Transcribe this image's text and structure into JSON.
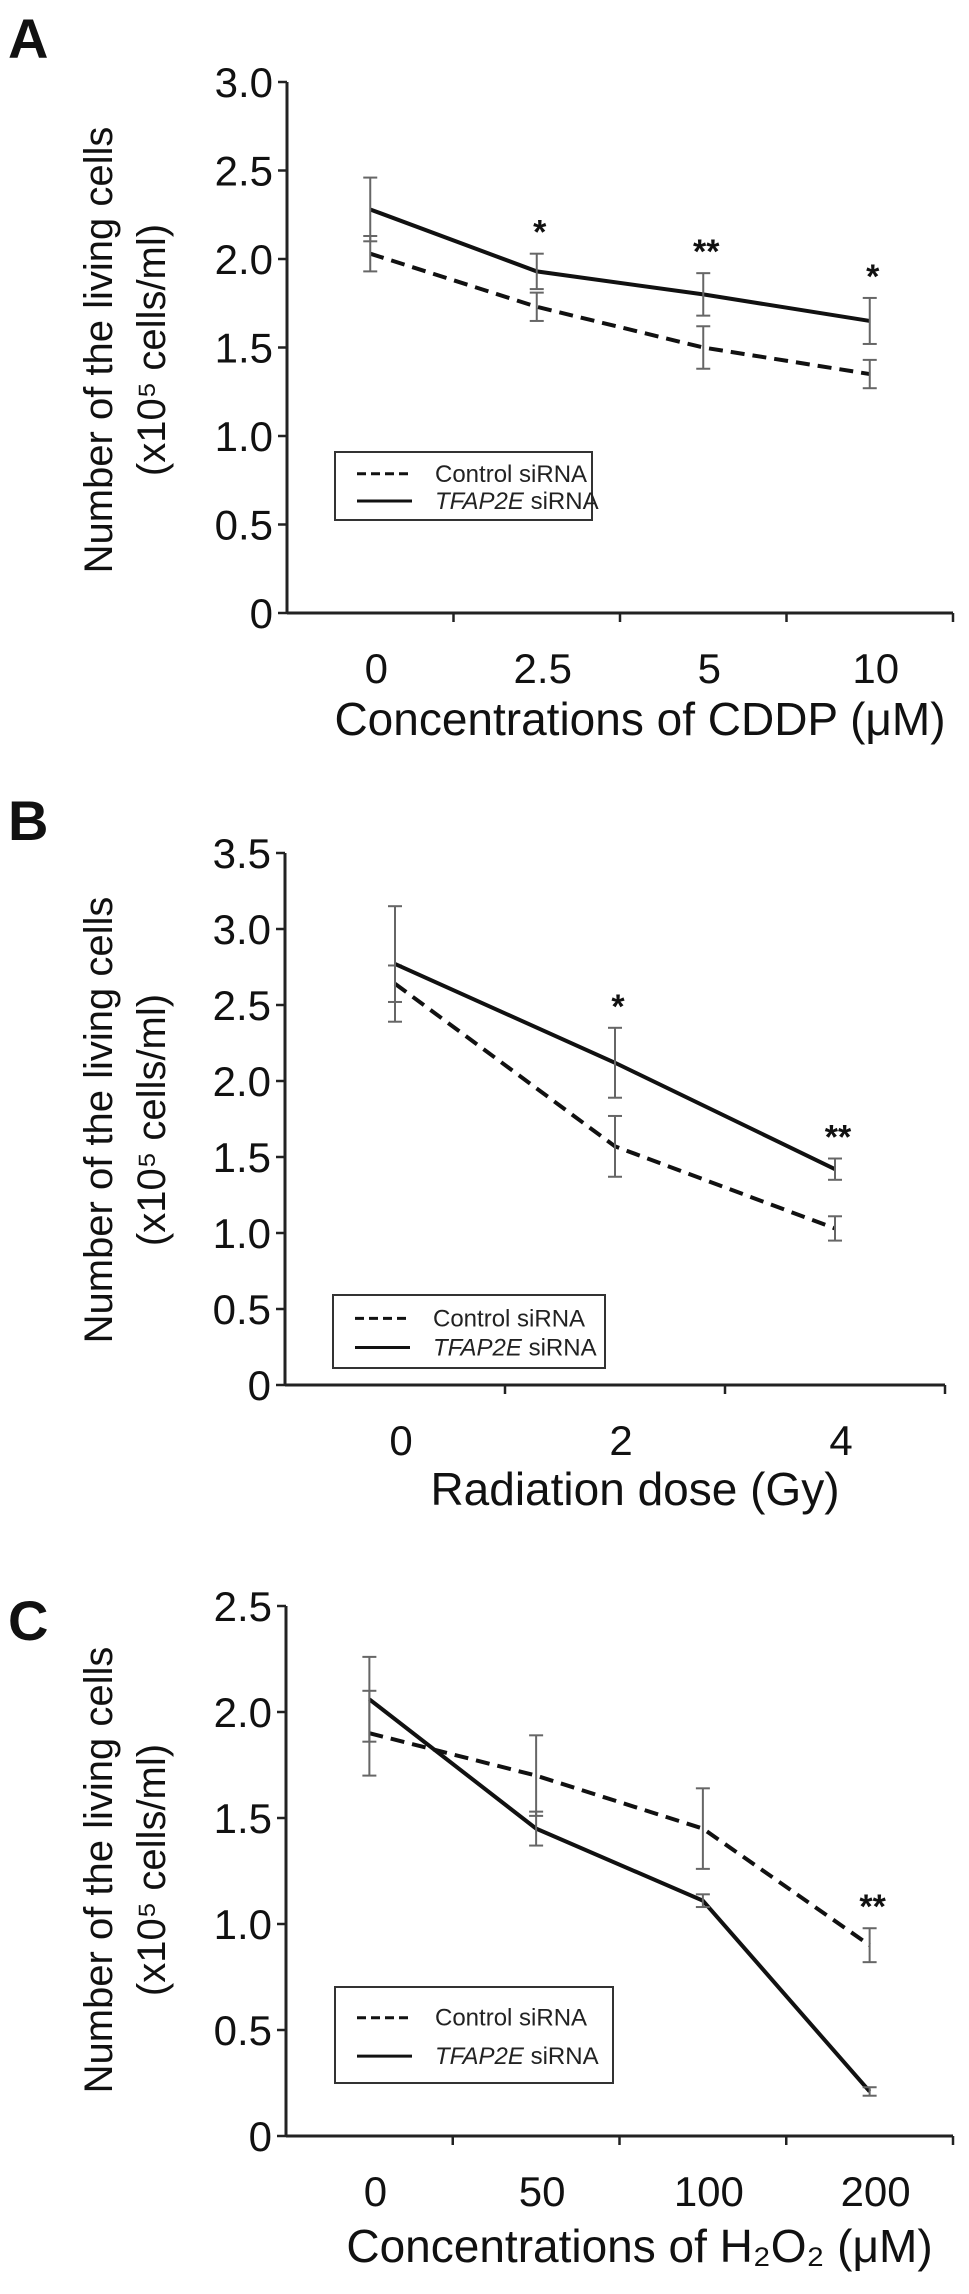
{
  "chart_data": [
    {
      "type": "line",
      "panel": "A",
      "title": "",
      "xlabel": "Concentrations of CDDP (μM)",
      "ylabel": [
        "Number of the living cells",
        "(x10⁵ cells/ml)"
      ],
      "categories": [
        "0",
        "2.5",
        "5",
        "10"
      ],
      "ylim": [
        0,
        3.0
      ],
      "yticks": [
        "0",
        "0.5",
        "1.0",
        "1.5",
        "2.0",
        "2.5",
        "3.0"
      ],
      "legend_position": "lower-left",
      "series": [
        {
          "name": "Control siRNA",
          "style": "dashed",
          "values": [
            2.03,
            1.73,
            1.5,
            1.35
          ],
          "errors": [
            0.1,
            0.08,
            0.12,
            0.08
          ]
        },
        {
          "name": "TFAP2E siRNA",
          "style": "solid",
          "values": [
            2.28,
            1.93,
            1.8,
            1.65
          ],
          "errors": [
            0.18,
            0.1,
            0.12,
            0.13
          ]
        }
      ],
      "annotations": [
        {
          "category": "2.5",
          "text": "*"
        },
        {
          "category": "5",
          "text": "**"
        },
        {
          "category": "10",
          "text": "*"
        }
      ]
    },
    {
      "type": "line",
      "panel": "B",
      "title": "",
      "xlabel": "Radiation dose (Gy)",
      "ylabel": [
        "Number of the living cells",
        "(x10⁵ cells/ml)"
      ],
      "categories": [
        "0",
        "2",
        "4"
      ],
      "ylim": [
        0,
        3.5
      ],
      "yticks": [
        "0",
        "0.5",
        "1.0",
        "1.5",
        "2.0",
        "2.5",
        "3.0",
        "3.5"
      ],
      "legend_position": "lower-left",
      "series": [
        {
          "name": "Control siRNA",
          "style": "dashed",
          "values": [
            2.64,
            1.57,
            1.03
          ],
          "errors": [
            0.12,
            0.2,
            0.08
          ]
        },
        {
          "name": "TFAP2E siRNA",
          "style": "solid",
          "values": [
            2.77,
            2.12,
            1.42
          ],
          "errors": [
            0.38,
            0.23,
            0.07
          ]
        }
      ],
      "annotations": [
        {
          "category": "2",
          "text": "*"
        },
        {
          "category": "4",
          "text": "**"
        }
      ]
    },
    {
      "type": "line",
      "panel": "C",
      "title": "",
      "xlabel": "Concentrations of H₂O₂ (μM)",
      "ylabel": [
        "Number of the living cells",
        "(x10⁵ cells/ml)"
      ],
      "categories": [
        "0",
        "50",
        "100",
        "200"
      ],
      "ylim": [
        0,
        2.5
      ],
      "yticks": [
        "0",
        "0.5",
        "1.0",
        "1.5",
        "2.0",
        "2.5"
      ],
      "legend_position": "lower-left",
      "series": [
        {
          "name": "Control siRNA",
          "style": "dashed",
          "values": [
            1.9,
            1.7,
            1.45,
            0.9
          ],
          "errors": [
            0.2,
            0.19,
            0.19,
            0.08
          ]
        },
        {
          "name": "TFAP2E siRNA",
          "style": "solid",
          "values": [
            2.06,
            1.45,
            1.11,
            0.21
          ],
          "errors": [
            0.2,
            0.08,
            0.03,
            0.02
          ]
        }
      ],
      "annotations": [
        {
          "category": "200",
          "text": "**"
        }
      ]
    }
  ]
}
